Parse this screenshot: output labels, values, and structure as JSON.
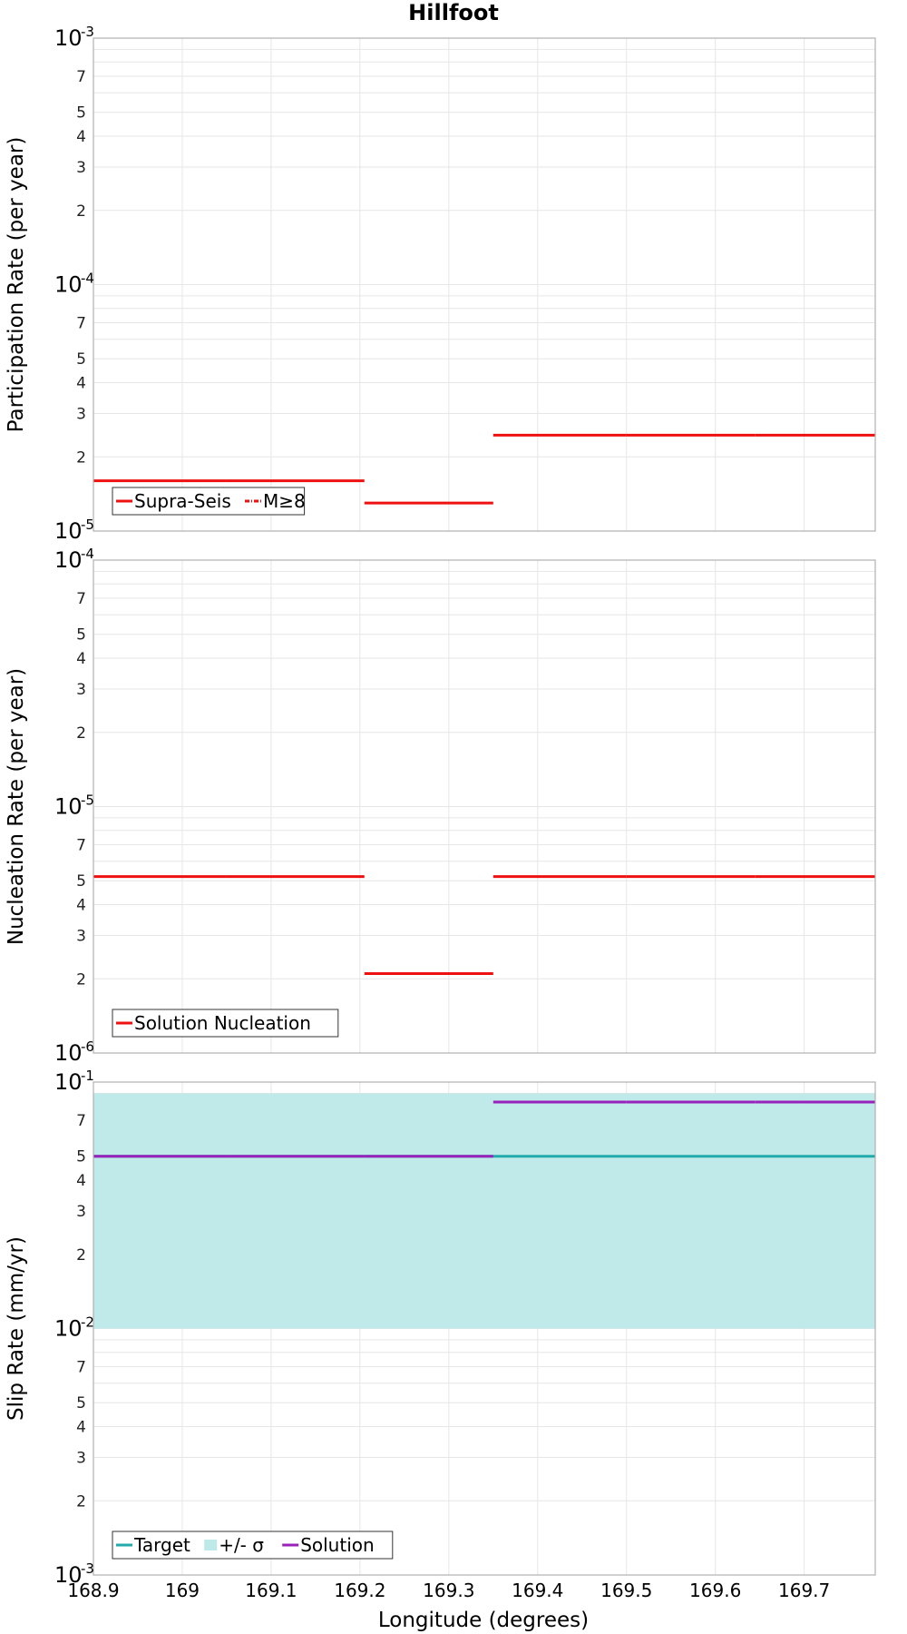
{
  "title": "Hillfoot",
  "xlabel": "Longitude (degrees)",
  "x_ticks": [
    "168.9",
    "169",
    "169.1",
    "169.2",
    "169.3",
    "169.4",
    "169.5",
    "169.6",
    "169.7"
  ],
  "colors": {
    "red": "#ee1111",
    "target": "#22aaaa",
    "sigma_band": "#bde9e9",
    "solution": "#9922bb",
    "grid": "#e6e6e6",
    "frame": "#b0b0b0"
  },
  "chart_data": [
    {
      "type": "line",
      "ylabel": "Participation Rate (per year)",
      "yscale": "log",
      "ylim": [
        1e-05,
        0.001
      ],
      "xlim": [
        168.9,
        169.78
      ],
      "legend": {
        "position": "bottom-left",
        "entries": [
          {
            "label": "Supra-Seis",
            "style": "solid",
            "color": "#ee1111"
          },
          {
            "label": "M≥8",
            "style": "dash-dot",
            "color": "#ee1111"
          }
        ]
      },
      "series": [
        {
          "name": "Supra-Seis",
          "style": "step",
          "segments": [
            {
              "x": [
                168.9,
                169.05
              ],
              "y": 1.6e-05
            },
            {
              "x": [
                169.05,
                169.205
              ],
              "y": 1.6e-05
            },
            {
              "x": [
                169.205,
                169.35
              ],
              "y": 1.3e-05
            },
            {
              "x": [
                169.35,
                169.5
              ],
              "y": 2.45e-05
            },
            {
              "x": [
                169.5,
                169.645
              ],
              "y": 2.45e-05
            },
            {
              "x": [
                169.645,
                169.78
              ],
              "y": 2.45e-05
            }
          ]
        }
      ]
    },
    {
      "type": "line",
      "ylabel": "Nucleation Rate (per year)",
      "yscale": "log",
      "ylim": [
        1e-06,
        0.0001
      ],
      "xlim": [
        168.9,
        169.78
      ],
      "legend": {
        "position": "bottom-left",
        "entries": [
          {
            "label": "Solution Nucleation",
            "style": "solid",
            "color": "#ee1111"
          }
        ]
      },
      "series": [
        {
          "name": "Solution Nucleation",
          "style": "step",
          "segments": [
            {
              "x": [
                168.9,
                169.05
              ],
              "y": 5.2e-06
            },
            {
              "x": [
                169.05,
                169.205
              ],
              "y": 5.2e-06
            },
            {
              "x": [
                169.205,
                169.35
              ],
              "y": 2.1e-06
            },
            {
              "x": [
                169.35,
                169.5
              ],
              "y": 5.2e-06
            },
            {
              "x": [
                169.5,
                169.645
              ],
              "y": 5.2e-06
            },
            {
              "x": [
                169.645,
                169.78
              ],
              "y": 5.2e-06
            }
          ]
        }
      ]
    },
    {
      "type": "line",
      "ylabel": "Slip Rate (mm/yr)",
      "yscale": "log",
      "ylim": [
        0.001,
        0.1
      ],
      "xlim": [
        168.9,
        169.78
      ],
      "legend": {
        "position": "bottom-left",
        "entries": [
          {
            "label": "Target",
            "style": "solid",
            "color": "#22aaaa"
          },
          {
            "label": "+/- σ",
            "style": "band",
            "color": "#bde9e9"
          },
          {
            "label": "Solution",
            "style": "solid",
            "color": "#9922bb"
          }
        ]
      },
      "band": {
        "name": "+/- σ",
        "y_low": 0.01,
        "y_high": 0.09,
        "x": [
          168.9,
          169.78
        ]
      },
      "series": [
        {
          "name": "Target",
          "style": "step",
          "segments": [
            {
              "x": [
                168.9,
                169.78
              ],
              "y": 0.05
            }
          ]
        },
        {
          "name": "Solution",
          "style": "step",
          "segments": [
            {
              "x": [
                168.9,
                169.05
              ],
              "y": 0.05
            },
            {
              "x": [
                169.05,
                169.205
              ],
              "y": 0.05
            },
            {
              "x": [
                169.205,
                169.35
              ],
              "y": 0.05
            },
            {
              "x": [
                169.35,
                169.5
              ],
              "y": 0.083
            },
            {
              "x": [
                169.5,
                169.645
              ],
              "y": 0.083
            },
            {
              "x": [
                169.645,
                169.78
              ],
              "y": 0.083
            }
          ]
        }
      ]
    }
  ]
}
